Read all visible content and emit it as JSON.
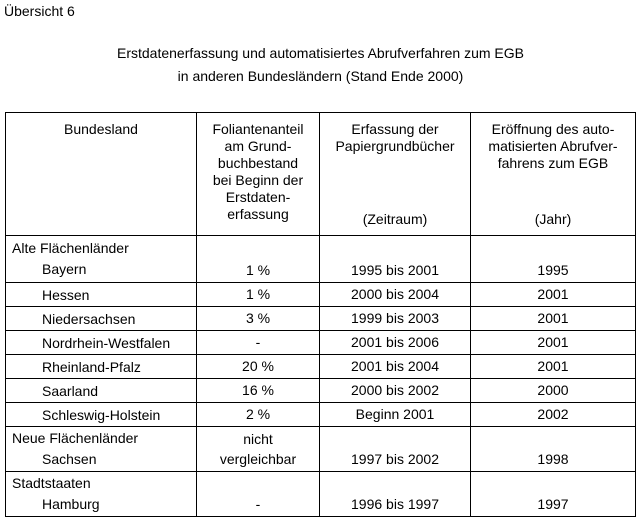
{
  "heading": "Übersicht 6",
  "title_line1": "Erstdatenerfassung und automatisiertes Abrufverfahren zum EGB",
  "title_line2": "in anderen Bundesländern (Stand Ende 2000)",
  "columns": {
    "bundesland": "Bundesland",
    "foliant_1": "Foliantenanteil",
    "foliant_2": "am Grund-",
    "foliant_3": "buchbestand",
    "foliant_4": "bei Beginn der",
    "foliant_5": "Erstdaten-",
    "foliant_6": "erfassung",
    "erfassung_1": "Erfassung der",
    "erfassung_2": "Papiergrundbücher",
    "erfassung_unit": "(Zeitraum)",
    "eroeffnung_1": "Eröffnung des auto-",
    "eroeffnung_2": "matisierten Abrufver-",
    "eroeffnung_3": "fahrens zum EGB",
    "eroeffnung_unit": "(Jahr)"
  },
  "groups": {
    "alte": "Alte Flächenländer",
    "neue": "Neue Flächenländer",
    "stadt": "Stadtstaaten"
  },
  "rows": [
    {
      "land": "Bayern",
      "anteil": "1 %",
      "zeitraum": "1995 bis 2001",
      "jahr": "1995"
    },
    {
      "land": "Hessen",
      "anteil": "1 %",
      "zeitraum": "2000 bis 2004",
      "jahr": "2001"
    },
    {
      "land": "Niedersachsen",
      "anteil": "3 %",
      "zeitraum": "1999 bis 2003",
      "jahr": "2001"
    },
    {
      "land": "Nordrhein-Westfalen",
      "anteil": "-",
      "zeitraum": "2001 bis 2006",
      "jahr": "2001"
    },
    {
      "land": "Rheinland-Pfalz",
      "anteil": "20 %",
      "zeitraum": "2001 bis 2004",
      "jahr": "2001"
    },
    {
      "land": "Saarland",
      "anteil": "16 %",
      "zeitraum": "2000 bis 2002",
      "jahr": "2000"
    },
    {
      "land": "Schleswig-Holstein",
      "anteil": "2 %",
      "zeitraum": "Beginn 2001",
      "jahr": "2002"
    },
    {
      "land": "Sachsen",
      "anteil_1": "nicht",
      "anteil_2": "vergleichbar",
      "zeitraum": "1997 bis 2002",
      "jahr": "1998"
    },
    {
      "land": "Hamburg",
      "anteil": "-",
      "zeitraum": "1996 bis 1997",
      "jahr": "1997"
    }
  ]
}
